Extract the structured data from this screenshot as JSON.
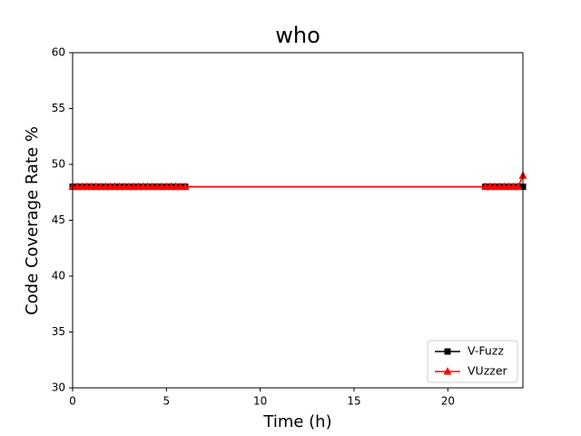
{
  "chart_data": {
    "type": "line",
    "title": "who",
    "x_label": "Time (h)",
    "y_label": "Code Coverage Rate %",
    "x": [
      0,
      0.25,
      0.5,
      0.75,
      1,
      1.25,
      1.5,
      1.75,
      2,
      2.25,
      2.5,
      2.75,
      3,
      3.25,
      3.5,
      3.75,
      4,
      4.25,
      4.5,
      4.75,
      5,
      5.25,
      5.5,
      5.75,
      6,
      22,
      22.25,
      22.5,
      22.75,
      23,
      23.25,
      23.5,
      23.75,
      24
    ],
    "series": [
      {
        "name": "V-Fuzz",
        "color": "#000000",
        "marker": "square",
        "values": [
          48,
          48,
          48,
          48,
          48,
          48,
          48,
          48,
          48,
          48,
          48,
          48,
          48,
          48,
          48,
          48,
          48,
          48,
          48,
          48,
          48,
          48,
          48,
          48,
          48,
          48,
          48,
          48,
          48,
          48,
          48,
          48,
          48,
          48
        ]
      },
      {
        "name": "VUzzer",
        "color": "#ff0000",
        "marker": "triangle",
        "values": [
          48,
          48,
          48,
          48,
          48,
          48,
          48,
          48,
          48,
          48,
          48,
          48,
          48,
          48,
          48,
          48,
          48,
          48,
          48,
          48,
          48,
          48,
          48,
          48,
          48,
          48,
          48,
          48,
          48,
          48,
          48,
          48,
          48,
          49
        ]
      }
    ],
    "xlim": [
      0,
      24
    ],
    "ylim": [
      30,
      60
    ],
    "xticks": [
      0,
      5,
      10,
      15,
      20
    ],
    "yticks": [
      30,
      35,
      40,
      45,
      50,
      55,
      60
    ],
    "legend": "lower right"
  }
}
